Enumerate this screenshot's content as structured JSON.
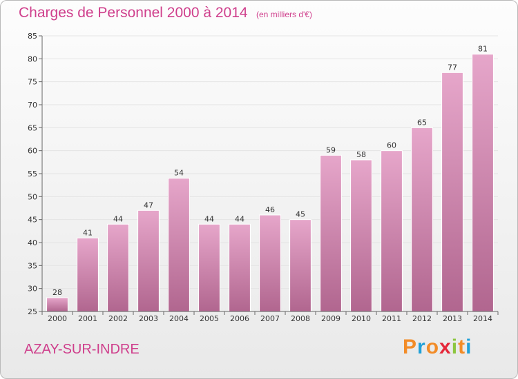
{
  "header": {
    "title": "Charges de Personnel 2000 à 2014",
    "subtitle": "(en milliers d'€)"
  },
  "footer": {
    "commune": "AZAY-SUR-INDRE",
    "logo": "Proxiti"
  },
  "colors": {
    "accent": "#cf3f8c",
    "bar_top": "#e6a6ca",
    "bar_bottom": "#b1668f",
    "logo_letters": [
      "#f28c28",
      "#1fa0d8",
      "#f28c28",
      "#e5283a",
      "#8cc63f",
      "#f28c28",
      "#1fa0d8"
    ]
  },
  "chart_data": {
    "type": "bar",
    "title": "Charges de Personnel 2000 à 2014",
    "subtitle": "(en milliers d'€)",
    "categories": [
      "2000",
      "2001",
      "2002",
      "2003",
      "2004",
      "2005",
      "2006",
      "2007",
      "2008",
      "2009",
      "2010",
      "2011",
      "2012",
      "2013",
      "2014"
    ],
    "values": [
      28,
      41,
      44,
      47,
      54,
      44,
      44,
      46,
      45,
      59,
      58,
      60,
      65,
      77,
      81
    ],
    "ylim": [
      25,
      85
    ],
    "yticks": [
      25,
      30,
      35,
      40,
      45,
      50,
      55,
      60,
      65,
      70,
      75,
      80,
      85
    ],
    "grid": true,
    "xlabel": "",
    "ylabel": ""
  }
}
